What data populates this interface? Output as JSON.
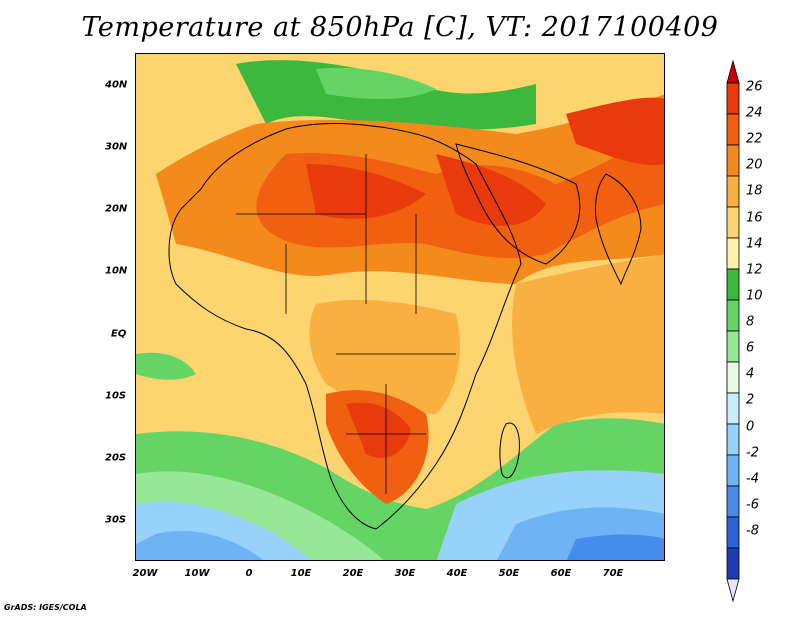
{
  "title": "Temperature at 850hPa [C], VT: 2017100409",
  "footer": "GrADS: IGES/COLA",
  "map": {
    "lat_labels": [
      "40N",
      "30N",
      "20N",
      "10N",
      "EQ",
      "10S",
      "20S",
      "30S"
    ],
    "lon_labels": [
      "20W",
      "10W",
      "0",
      "10E",
      "20E",
      "30E",
      "40E",
      "50E",
      "60E",
      "70E"
    ]
  },
  "colorbar": {
    "labels": [
      "26",
      "24",
      "22",
      "20",
      "18",
      "16",
      "14",
      "12",
      "10",
      "8",
      "6",
      "4",
      "2",
      "0",
      "-2",
      "-4",
      "-6",
      "-8"
    ],
    "colors": [
      "#c80000",
      "#e83a0a",
      "#f06010",
      "#f58a1c",
      "#f9b040",
      "#fcd470",
      "#fdf2a8",
      "#3cb83c",
      "#64d464",
      "#96e896",
      "#e6f8e6",
      "#c8ecfa",
      "#96d2fa",
      "#6eb4f5",
      "#468ceb",
      "#2864d2",
      "#1e3cb4",
      "#0a1478"
    ]
  }
}
